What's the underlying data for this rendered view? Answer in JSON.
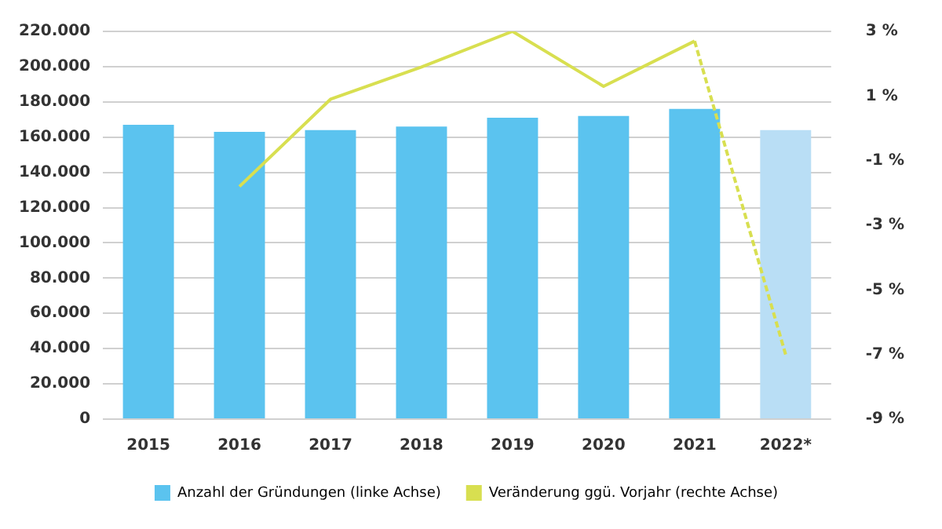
{
  "chart_data": {
    "type": "bar",
    "categories": [
      "2015",
      "2016",
      "2017",
      "2018",
      "2019",
      "2020",
      "2021",
      "2022*"
    ],
    "series": [
      {
        "name": "Anzahl der Gründungen (linke Achse)",
        "color": "#5bc3ef",
        "colors": [
          "#5bc3ef",
          "#5bc3ef",
          "#5bc3ef",
          "#5bc3ef",
          "#5bc3ef",
          "#5bc3ef",
          "#5bc3ef",
          "#b9def5"
        ],
        "values": [
          167000,
          163000,
          164000,
          166000,
          171000,
          172000,
          176000,
          164000
        ]
      },
      {
        "name": "Veränderung ggü. Vorjahr (rechte Achse)",
        "type": "line",
        "axis": "y2",
        "color": "#d8df50",
        "line_style": "solid",
        "marker": "none",
        "values": [
          null,
          -1.8,
          0.9,
          1.9,
          3.0,
          1.3,
          2.7,
          null
        ]
      },
      {
        "type": "line",
        "axis": "y2",
        "color": "#d8df50",
        "line_style": "dashed",
        "marker": "none",
        "values": [
          null,
          null,
          null,
          null,
          null,
          null,
          2.7,
          -7.0
        ]
      }
    ],
    "ylim": [
      0,
      220000
    ],
    "yticks": [
      {
        "value": 0,
        "label": "0"
      },
      {
        "value": 20000,
        "label": "20.000"
      },
      {
        "value": 40000,
        "label": "40.000"
      },
      {
        "value": 60000,
        "label": "60.000"
      },
      {
        "value": 80000,
        "label": "80.000"
      },
      {
        "value": 100000,
        "label": "100.000"
      },
      {
        "value": 120000,
        "label": "120.000"
      },
      {
        "value": 140000,
        "label": "140.000"
      },
      {
        "value": 160000,
        "label": "160.000"
      },
      {
        "value": 180000,
        "label": "180.000"
      },
      {
        "value": 200000,
        "label": "200.000"
      },
      {
        "value": 220000,
        "label": "220.000"
      }
    ],
    "y2lim": [
      -9,
      3
    ],
    "y2ticks": [
      {
        "value": -9,
        "label": "-9 %"
      },
      {
        "value": -7,
        "label": "-7 %"
      },
      {
        "value": -5,
        "label": "-5 %"
      },
      {
        "value": -3,
        "label": "-3 %"
      },
      {
        "value": -1,
        "label": "-1 %"
      },
      {
        "value": 1,
        "label": "1 %"
      },
      {
        "value": 3,
        "label": "3 %"
      }
    ],
    "grid": "y",
    "legend": "bottom"
  }
}
